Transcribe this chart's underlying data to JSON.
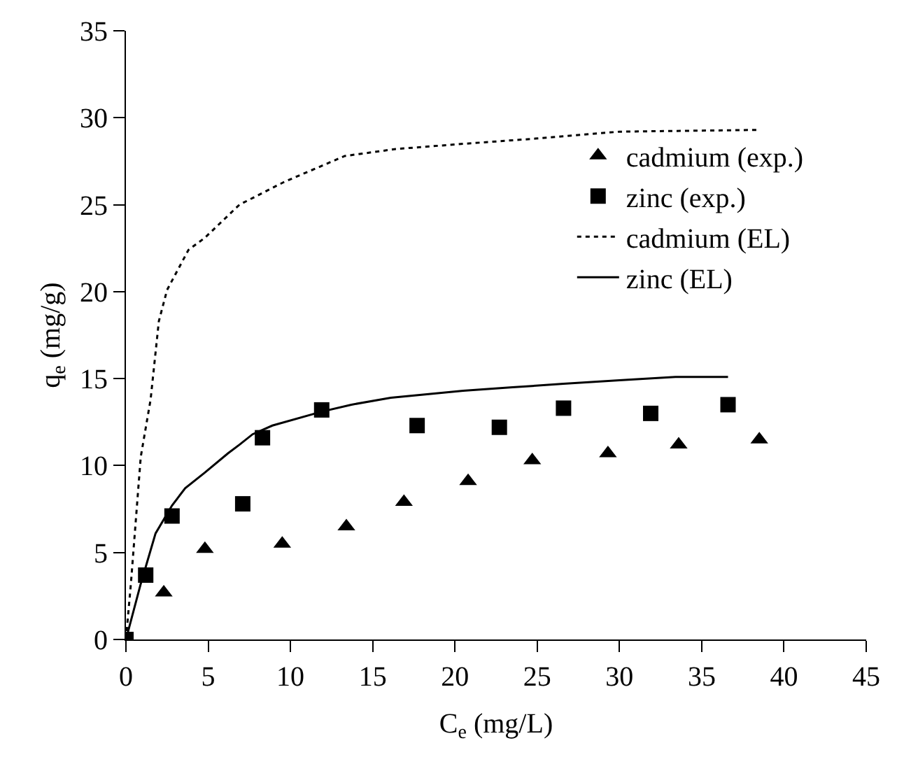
{
  "chart_data": {
    "type": "scatter",
    "xlabel": "C$_{e}$ (mg/L)",
    "ylabel": "q$_{e}$ (mg/g)",
    "xlim": [
      0,
      45
    ],
    "xticks": [
      0,
      5,
      10,
      15,
      20,
      25,
      30,
      35,
      40,
      45
    ],
    "ylim": [
      0,
      35
    ],
    "yticks": [
      0,
      5,
      10,
      15,
      20,
      25,
      30,
      35
    ],
    "legend": "top right",
    "series": [
      {
        "name": "cadmium (exp.)",
        "marker": "triangle",
        "color": "#000000",
        "x": [
          2.3,
          4.8,
          9.5,
          13.4,
          16.9,
          20.8,
          24.7,
          29.3,
          33.6,
          38.5
        ],
        "values": [
          2.7,
          5.2,
          5.5,
          6.5,
          7.9,
          9.1,
          10.3,
          10.7,
          11.2,
          11.5
        ]
      },
      {
        "name": "zinc (exp.)",
        "marker": "square",
        "color": "#000000",
        "x": [
          0,
          1.2,
          2.8,
          7.1,
          8.3,
          11.9,
          17.7,
          22.7,
          26.6,
          31.9,
          36.6
        ],
        "values": [
          0,
          3.7,
          7.1,
          7.8,
          11.6,
          13.2,
          12.3,
          12.2,
          13.3,
          13.0,
          13.5
        ]
      },
      {
        "name": "cadmium (EL)",
        "type": "line",
        "line_style": "dotted",
        "color": "#000000",
        "x": [
          0,
          0.3,
          0.9,
          1.5,
          2.0,
          2.5,
          3.8,
          4.8,
          6.9,
          9.6,
          13.3,
          16.4,
          20.5,
          24.9,
          30,
          38.4
        ],
        "values": [
          0,
          3.2,
          10.5,
          13.8,
          18.3,
          20.1,
          22.4,
          23.1,
          25.0,
          26.3,
          27.8,
          28.2,
          28.5,
          28.8,
          29.2,
          29.3
        ]
      },
      {
        "name": "zinc (EL)",
        "type": "line",
        "line_style": "solid",
        "color": "#000000",
        "x": [
          0,
          0.9,
          1.8,
          2.8,
          3.6,
          4.8,
          6.2,
          6.9,
          7.7,
          8.9,
          11.9,
          13.7,
          16.1,
          20.5,
          23.5,
          26.6,
          30,
          33.4,
          36.6
        ],
        "values": [
          0,
          3.2,
          6.1,
          7.7,
          8.7,
          9.6,
          10.7,
          11.2,
          11.8,
          12.3,
          13.1,
          13.5,
          13.9,
          14.3,
          14.5,
          14.7,
          14.9,
          15.1,
          15.1
        ]
      }
    ]
  }
}
